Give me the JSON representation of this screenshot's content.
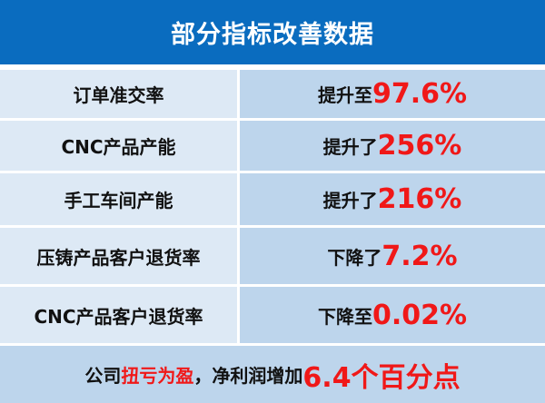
{
  "title": "部分指标改善数据",
  "rows": [
    {
      "label": "订单准交率",
      "prefix": "提升至",
      "value": "97.6%"
    },
    {
      "label": "CNC产品产能",
      "prefix": "提升了",
      "value": "256%"
    },
    {
      "label": "手工车间产能",
      "prefix": "提升了",
      "value": "216%"
    },
    {
      "label": "压铸产品客户退货率",
      "prefix": "下降了",
      "value": "7.2%"
    },
    {
      "label": "CNC产品客户退货率",
      "prefix": "下降至",
      "value": "0.02%"
    }
  ],
  "footer": {
    "part1": "公司",
    "part2": "扭亏为盈",
    "part3": "，净利润增加",
    "part4": "6.4个百分点"
  },
  "colors": {
    "header": "#0a6cbf",
    "highlight": "#f01818",
    "left_cell": "#dde9f5",
    "right_cell": "#bdd5ec"
  }
}
